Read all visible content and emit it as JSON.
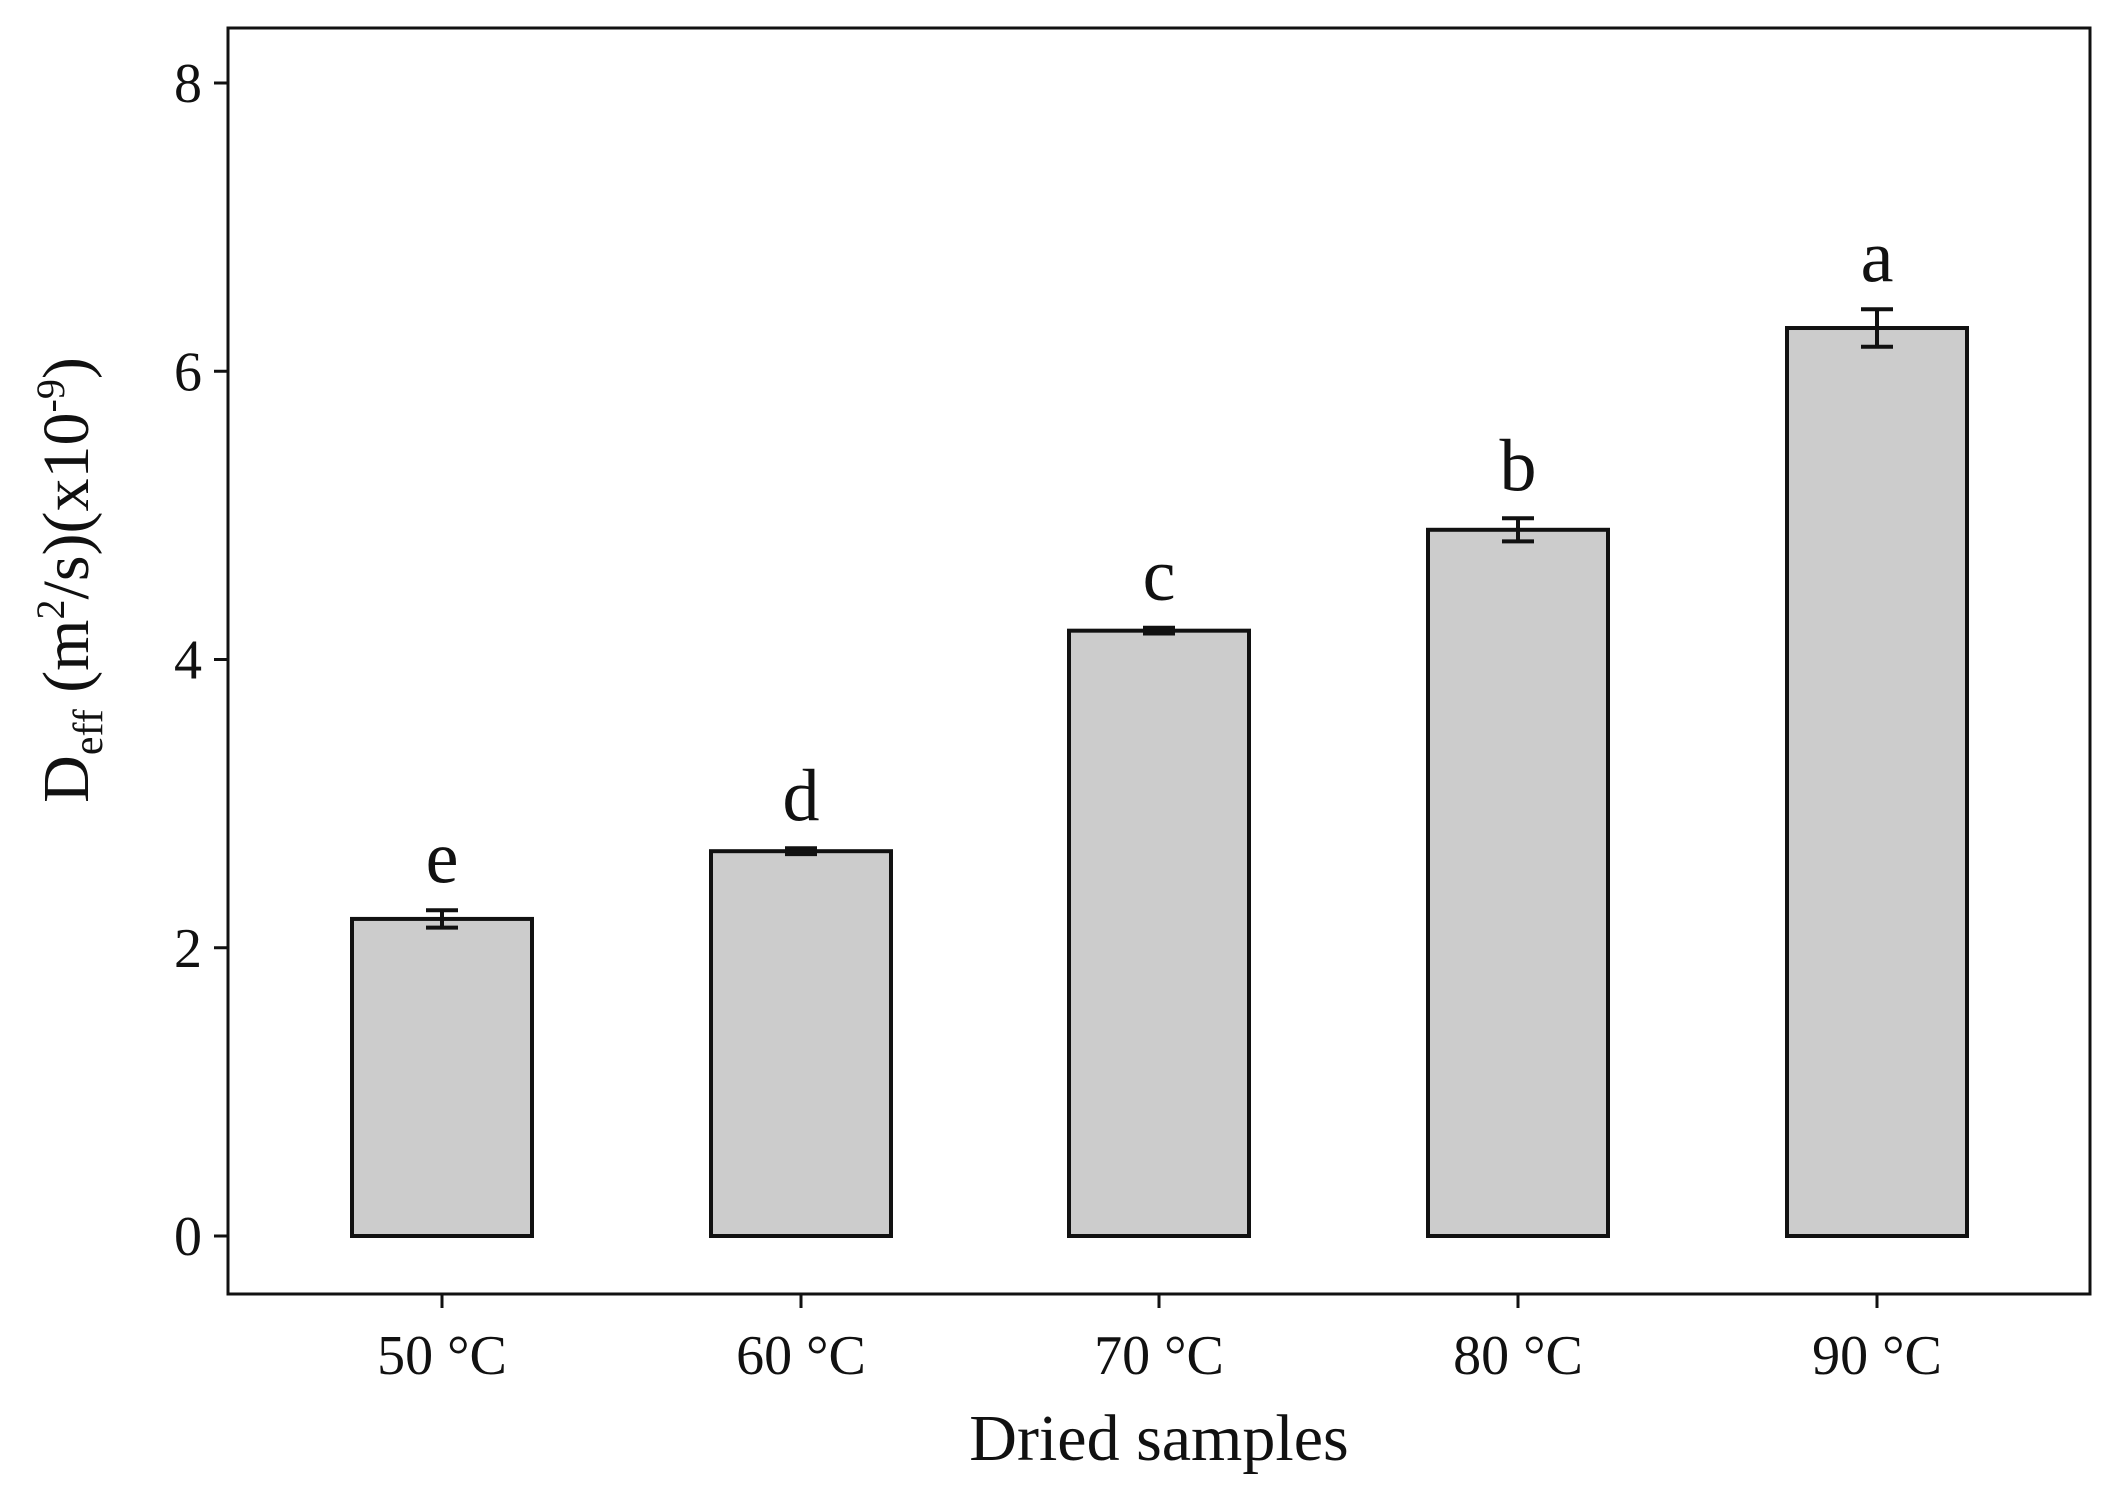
{
  "chart_data": {
    "type": "bar",
    "categories": [
      "50 °C",
      "60 °C",
      "70 °C",
      "80 °C",
      "90 °C"
    ],
    "values": [
      2.2,
      2.67,
      4.2,
      4.9,
      6.3
    ],
    "errors": [
      0.06,
      0.02,
      0.02,
      0.08,
      0.13
    ],
    "significance_letters": [
      "e",
      "d",
      "c",
      "b",
      "a"
    ],
    "xlabel": "Dried samples",
    "ylabel": {
      "main": "D",
      "subscript": "eff",
      "unit_open": " (m",
      "unit_sup": "2",
      "unit_mid": "/s)(x10",
      "unit_sup2": "-9",
      "unit_close": ")"
    },
    "ylim": [
      -0.2,
      8.4
    ],
    "yticks": [
      0,
      2,
      4,
      6,
      8
    ],
    "grid": false,
    "colors": {
      "bar_fill": "#cccccc",
      "bar_stroke": "#111111",
      "axis": "#111111"
    }
  }
}
